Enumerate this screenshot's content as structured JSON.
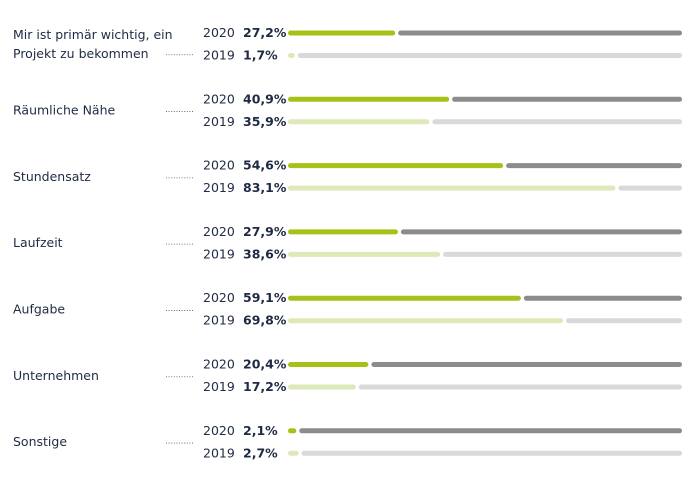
{
  "chart_data": {
    "type": "bar",
    "orientation": "horizontal",
    "value_unit": "%",
    "xlim": [
      0,
      100
    ],
    "grid": false,
    "series": [
      {
        "year": "2020",
        "color": "#a8c118",
        "track_color": "#8c8c8c"
      },
      {
        "year": "2019",
        "color": "#dde9b8",
        "track_color": "#d9d9d9"
      }
    ],
    "categories": [
      {
        "label_lines": [
          "Mir ist primär wichtig, ein",
          "Projekt zu bekommen"
        ],
        "values": [
          27.2,
          1.7
        ],
        "value_labels": [
          "27,2%",
          "1,7%"
        ]
      },
      {
        "label_lines": [
          "Räumliche Nähe"
        ],
        "values": [
          40.9,
          35.9
        ],
        "value_labels": [
          "40,9%",
          "35,9%"
        ]
      },
      {
        "label_lines": [
          "Stundensatz"
        ],
        "values": [
          54.6,
          83.1
        ],
        "value_labels": [
          "54,6%",
          "83,1%"
        ]
      },
      {
        "label_lines": [
          "Laufzeit"
        ],
        "values": [
          27.9,
          38.6
        ],
        "value_labels": [
          "27,9%",
          "38,6%"
        ]
      },
      {
        "label_lines": [
          "Aufgabe"
        ],
        "values": [
          59.1,
          69.8
        ],
        "value_labels": [
          "59,1%",
          "69,8%"
        ]
      },
      {
        "label_lines": [
          "Unternehmen"
        ],
        "values": [
          20.4,
          17.2
        ],
        "value_labels": [
          "20,4%",
          "17,2%"
        ]
      },
      {
        "label_lines": [
          "Sonstige"
        ],
        "values": [
          2.1,
          2.7
        ],
        "value_labels": [
          "2,1%",
          "2,7%"
        ]
      }
    ]
  }
}
